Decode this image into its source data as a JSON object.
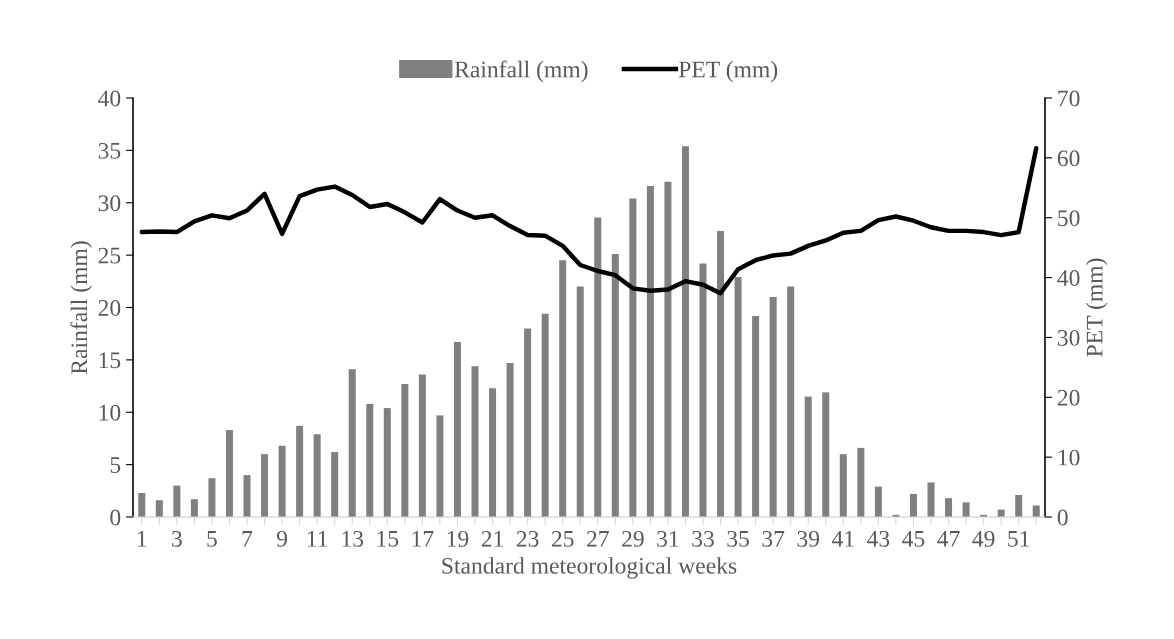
{
  "chart_data": {
    "type": "bar",
    "xlabel": "Standard meteorological weeks",
    "ylabel": "Rainfall (mm)",
    "y2label": "PET (mm)",
    "categories": [
      "1",
      null,
      "3",
      null,
      "5",
      null,
      "7",
      null,
      "9",
      null,
      "11",
      null,
      "13",
      null,
      "15",
      null,
      "17",
      null,
      "19",
      null,
      "21",
      null,
      "23",
      null,
      "25",
      null,
      "27",
      null,
      "29",
      null,
      "31",
      null,
      "33",
      null,
      "35",
      null,
      "37",
      null,
      "39",
      null,
      "41",
      null,
      "43",
      null,
      "45",
      null,
      "47",
      null,
      "49",
      null,
      "51",
      null
    ],
    "series": [
      {
        "name": "Rainfall (mm)",
        "color": "#808080",
        "values": [
          2.3,
          1.6,
          3.0,
          1.7,
          3.7,
          8.3,
          4.0,
          6.0,
          6.8,
          8.7,
          7.9,
          6.2,
          14.1,
          10.8,
          10.4,
          12.7,
          13.6,
          9.7,
          16.7,
          14.4,
          12.3,
          14.7,
          18.0,
          19.4,
          24.5,
          22.0,
          28.6,
          25.1,
          30.4,
          31.6,
          32.0,
          35.4,
          24.2,
          27.3,
          22.9,
          19.2,
          21.0,
          22.0,
          11.5,
          11.9,
          6.0,
          6.6,
          2.9,
          0.2,
          2.2,
          3.3,
          1.8,
          1.4,
          0.2,
          0.7,
          2.1,
          1.1
        ]
      },
      {
        "name": "PET (mm)",
        "type": "line",
        "axis": "y2",
        "color": "#000000",
        "values": [
          47.6,
          47.7,
          47.6,
          49.4,
          50.4,
          49.9,
          51.2,
          54.0,
          47.3,
          53.6,
          54.7,
          55.2,
          53.8,
          51.8,
          52.3,
          50.9,
          49.2,
          53.1,
          51.2,
          50.0,
          50.4,
          48.6,
          47.1,
          47.0,
          45.3,
          42.1,
          41.1,
          40.4,
          38.2,
          37.8,
          38.0,
          39.4,
          38.8,
          37.4,
          41.4,
          42.9,
          43.7,
          44.0,
          45.3,
          46.2,
          47.5,
          47.8,
          49.6,
          50.2,
          49.5,
          48.4,
          47.8,
          47.8,
          47.6,
          47.1,
          47.6,
          61.6
        ]
      }
    ],
    "ylim": [
      0,
      40
    ],
    "yticks": [
      0,
      5,
      10,
      15,
      20,
      25,
      30,
      35,
      40
    ],
    "y2lim": [
      0,
      70
    ],
    "y2ticks": [
      0,
      10,
      20,
      30,
      40,
      50,
      60,
      70
    ],
    "legend": "top",
    "grid": false,
    "marker": "none",
    "line_style": "solid"
  }
}
